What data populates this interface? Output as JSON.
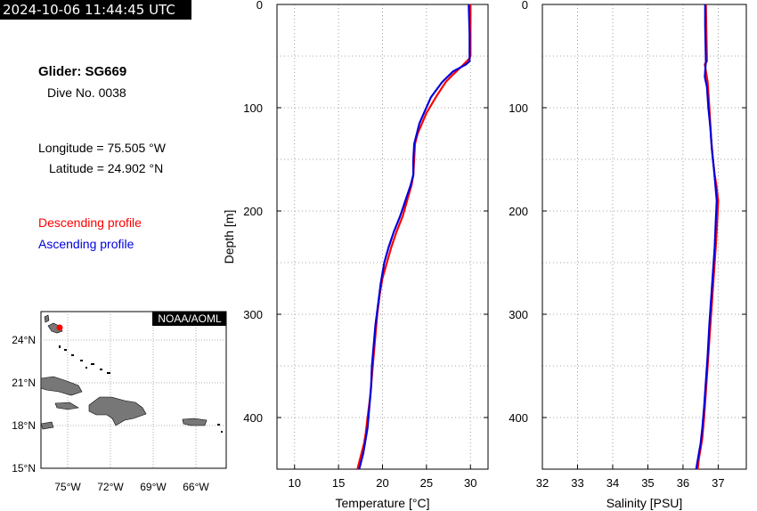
{
  "header": {
    "timestamp": "2024-10-06 11:44:45 UTC"
  },
  "info": {
    "glider": "Glider: SG669",
    "dive": "Dive No. 0038",
    "longitude": "Longitude = 75.505 °W",
    "latitude": "Latitude = 24.902 °N",
    "descending_label": "Descending profile",
    "ascending_label": "Ascending profile"
  },
  "colors": {
    "descending": "#ff0000",
    "ascending": "#0000dd"
  },
  "map": {
    "badge": "NOAA/AOML",
    "lat_labels": [
      "24°N",
      "21°N",
      "18°N",
      "15°N"
    ],
    "lon_labels": [
      "75°W",
      "72°W",
      "69°W",
      "66°W"
    ]
  },
  "chart_data": [
    {
      "type": "line",
      "xlabel": "Temperature [°C]",
      "ylabel": "Depth [m]",
      "xlim": [
        8,
        32
      ],
      "ylim": [
        450,
        0
      ],
      "xticks": [
        "10",
        "15",
        "20",
        "25",
        "30"
      ],
      "yticks": [
        "0",
        "100",
        "200",
        "300",
        "400"
      ],
      "grid": true,
      "series": [
        {
          "name": "Descending profile",
          "x": [
            30.0,
            30.0,
            29.8,
            29.0,
            28.0,
            27.2,
            26.2,
            25.0,
            24.0,
            23.7,
            23.6,
            23.5,
            23.3,
            22.8,
            22.3,
            21.6,
            21.0,
            20.5,
            20.0,
            19.7,
            19.4,
            19.2,
            19.0,
            18.8,
            18.6,
            18.3,
            18.1,
            17.9,
            17.6,
            17.3,
            17.0
          ],
          "y": [
            0,
            50,
            53,
            60,
            68,
            75,
            88,
            105,
            125,
            135,
            150,
            165,
            175,
            190,
            205,
            220,
            235,
            250,
            265,
            280,
            300,
            320,
            340,
            360,
            380,
            400,
            415,
            425,
            435,
            445,
            455
          ]
        },
        {
          "name": "Ascending profile",
          "x": [
            29.8,
            29.9,
            29.9,
            29.5,
            28.0,
            26.8,
            25.5,
            24.2,
            23.6,
            23.5,
            23.5,
            23.2,
            22.6,
            22.0,
            21.3,
            20.7,
            20.2,
            19.8,
            19.5,
            19.2,
            19.0,
            18.8,
            18.7,
            18.5,
            18.3,
            18.0,
            17.8,
            17.5,
            17.2
          ],
          "y": [
            0,
            30,
            55,
            58,
            65,
            75,
            90,
            115,
            135,
            150,
            165,
            175,
            190,
            205,
            220,
            235,
            250,
            270,
            290,
            310,
            330,
            350,
            370,
            390,
            410,
            425,
            435,
            445,
            455
          ]
        }
      ]
    },
    {
      "type": "line",
      "xlabel": "Salinity [PSU]",
      "ylabel": "",
      "xlim": [
        32,
        37.8
      ],
      "ylim": [
        450,
        0
      ],
      "xticks": [
        "32",
        "33",
        "34",
        "35",
        "36",
        "37"
      ],
      "yticks": [
        "0",
        "100",
        "200",
        "300",
        "400"
      ],
      "grid": true,
      "series": [
        {
          "name": "Descending profile",
          "x": [
            36.65,
            36.68,
            36.62,
            36.7,
            36.75,
            36.8,
            36.85,
            36.9,
            36.95,
            37.0,
            36.98,
            36.95,
            36.9,
            36.85,
            36.8,
            36.75,
            36.7,
            36.65,
            36.6,
            36.55,
            36.5,
            36.45,
            36.42,
            36.4
          ],
          "y": [
            0,
            55,
            58,
            75,
            100,
            130,
            150,
            165,
            175,
            190,
            205,
            225,
            250,
            275,
            300,
            325,
            350,
            375,
            400,
            420,
            430,
            440,
            450,
            455
          ]
        },
        {
          "name": "Ascending profile",
          "x": [
            36.63,
            36.63,
            36.65,
            36.62,
            36.68,
            36.72,
            36.78,
            36.82,
            36.88,
            36.92,
            36.96,
            36.93,
            36.9,
            36.85,
            36.8,
            36.75,
            36.7,
            36.65,
            36.6,
            36.55,
            36.5,
            36.45,
            36.4,
            36.35
          ],
          "y": [
            0,
            20,
            55,
            70,
            80,
            100,
            120,
            140,
            160,
            175,
            190,
            210,
            235,
            260,
            285,
            310,
            340,
            365,
            390,
            410,
            425,
            435,
            445,
            455
          ]
        }
      ]
    }
  ]
}
